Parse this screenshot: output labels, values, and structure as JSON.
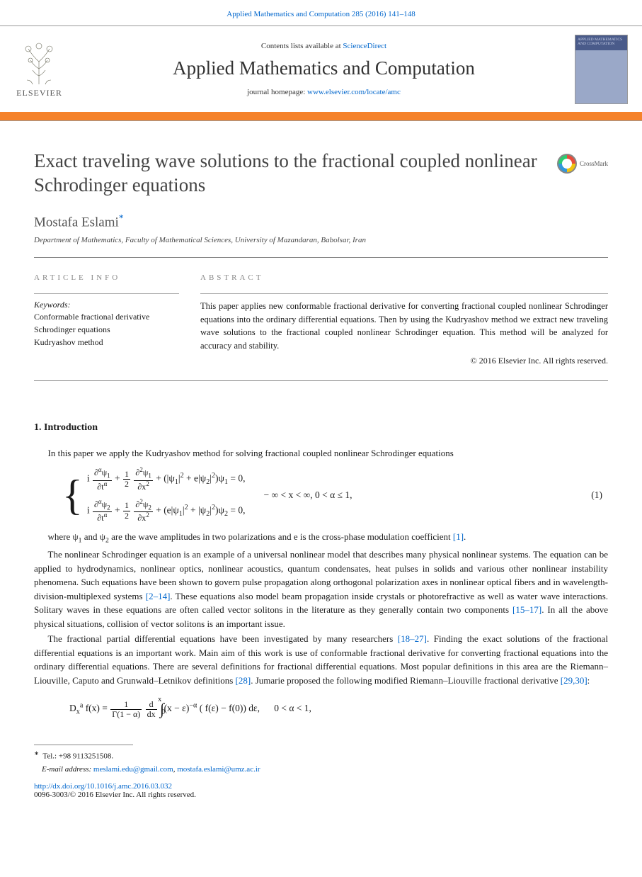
{
  "citation": {
    "text": "Applied Mathematics and Computation 285 (2016) 141–148"
  },
  "header": {
    "contents_prefix": "Contents lists available at ",
    "contents_link": "ScienceDirect",
    "journal": "Applied Mathematics and Computation",
    "homepage_prefix": "journal homepage: ",
    "homepage_link": "www.elsevier.com/locate/amc",
    "elsevier_brand": "ELSEVIER",
    "cover_title": "APPLIED MATHEMATICS AND COMPUTATION",
    "logo_color": "#e67817",
    "band_color": "#f5822a"
  },
  "article": {
    "title": "Exact traveling wave solutions to the fractional coupled nonlinear Schrodinger equations",
    "crossmark": "CrossMark",
    "author": "Mostafa Eslami",
    "affiliation": "Department of Mathematics, Faculty of Mathematical Sciences, University of Mazandaran, Babolsar, Iran"
  },
  "info": {
    "heading": "ARTICLE INFO",
    "kw_label": "Keywords:",
    "keywords": [
      "Conformable fractional derivative",
      "Schrodinger equations",
      "Kudryashov method"
    ]
  },
  "abstract": {
    "heading": "ABSTRACT",
    "text": "This paper applies new conformable fractional derivative for converting fractional coupled nonlinear Schrodinger equations into the ordinary differential equations. Then by using the Kudryashov method we extract new traveling wave solutions to the fractional coupled nonlinear Schrodinger equation. This method will be analyzed for accuracy and stability.",
    "copyright": "© 2016 Elsevier Inc. All rights reserved."
  },
  "sections": {
    "s1_heading": "1. Introduction",
    "p1": "In this paper we apply the Kudryashov method for solving fractional coupled nonlinear Schrodinger equations",
    "eq1_cond": "− ∞ < x < ∞, 0 < α ≤ 1,",
    "eq1_num": "(1)",
    "p2_a": "where ψ",
    "p2_b": " and ψ",
    "p2_c": " are the wave amplitudes in two polarizations and e is the cross-phase modulation coefficient ",
    "p2_ref": "[1]",
    "p2_d": ".",
    "p3_a": "The nonlinear Schrodinger equation is an example of a universal nonlinear model that describes many physical nonlinear systems. The equation can be applied to hydrodynamics, nonlinear optics, nonlinear acoustics, quantum condensates, heat pulses in solids and various other nonlinear instability phenomena. Such equations have been shown to govern pulse propagation along orthogonal polarization axes in nonlinear optical fibers and in wavelength-division-multiplexed systems ",
    "p3_ref1": "[2–14]",
    "p3_b": ". These equations also model beam propagation inside crystals or photorefractive as well as water wave interactions. Solitary waves in these equations are often called vector solitons in the literature as they generally contain two components ",
    "p3_ref2": "[15–17]",
    "p3_c": ". In all the above physical situations, collision of vector solitons is an important issue.",
    "p4_a": "The fractional partial differential equations have been investigated by many researchers ",
    "p4_ref1": "[18–27]",
    "p4_b": ". Finding the exact solutions of the fractional differential equations is an important work. Main aim of this work is use of conformable fractional derivative for converting fractional equations into the ordinary differential equations. There are several definitions for fractional differential equations. Most popular definitions in this area are the Riemann–Liouville, Caputo and Grunwald–Letnikov definitions ",
    "p4_ref2": "[28]",
    "p4_c": ". Jumarie proposed the following modified Riemann–Liouville fractional derivative ",
    "p4_ref3": "[29,30]",
    "p4_d": ":"
  },
  "equations": {
    "eq1_line1_html": "i <span class='frac'><span class='num'>∂<sup>α</sup>ψ<sub>1</sub></span><span class='den'>∂t<sup>α</sup></span></span> + <span class='frac'><span class='num'>1</span><span class='den'>2</span></span> <span class='frac'><span class='num'>∂<sup>2</sup>ψ<sub>1</sub></span><span class='den'>∂x<sup>2</sup></span></span> + (|ψ<sub>1</sub>|<sup>2</sup> + e|ψ<sub>2</sub>|<sup>2</sup>)ψ<sub>1</sub> = 0,",
    "eq1_line2_html": "i <span class='frac'><span class='num'>∂<sup>α</sup>ψ<sub>2</sub></span><span class='den'>∂t<sup>α</sup></span></span> + <span class='frac'><span class='num'>1</span><span class='den'>2</span></span> <span class='frac'><span class='num'>∂<sup>2</sup>ψ<sub>2</sub></span><span class='den'>∂x<sup>2</sup></span></span> + (e|ψ<sub>1</sub>|<sup>2</sup> + |ψ<sub>2</sub>|<sup>2</sup>)ψ<sub>2</sub> = 0,",
    "eq2_html": "D<sub>x</sub><sup>a</sup> f(x) = <span class='frac'><span class='num'>1</span><span class='den'>Γ(1 − α)</span></span> <span class='frac'><span class='num'>d</span><span class='den'>dx</span></span> <span class='intg'>∫</span><sub style='margin-left:-4px'>0</sub><sup style='margin-left:-10px;vertical-align:14px'>x</sup> (x − ε)<sup>−α</sup> ( f(ε) − f(0)) dε, &nbsp;&nbsp;&nbsp;&nbsp; 0 &lt; α &lt; 1,"
  },
  "footer": {
    "tel_label": "Tel.: ",
    "tel": "+98 9113251508.",
    "email_label": "E-mail address: ",
    "email1": "meslami.edu@gmail.com",
    "email2": "mostafa.eslami@umz.ac.ir",
    "doi": "http://dx.doi.org/10.1016/j.amc.2016.03.032",
    "issn_line": "0096-3003/© 2016 Elsevier Inc. All rights reserved."
  }
}
